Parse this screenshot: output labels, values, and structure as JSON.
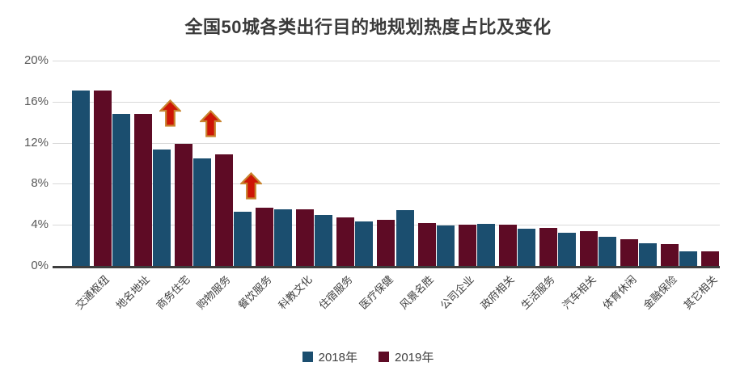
{
  "title": "全国50城各类出行目的地规划热度占比及变化",
  "legend": {
    "items": [
      {
        "label": "2018年",
        "color": "#1B4E6F"
      },
      {
        "label": "2019年",
        "color": "#5E0B25"
      }
    ]
  },
  "chart_data": {
    "type": "bar",
    "title": "全国50城各类出行目的地规划热度占比及变化",
    "categories": [
      "交通枢纽",
      "地名地址",
      "商务住宅",
      "购物服务",
      "餐饮服务",
      "科教文化",
      "住宿服务",
      "医疗保健",
      "风景名胜",
      "公司企业",
      "政府相关",
      "生活服务",
      "汽车相关",
      "体育休闲",
      "金融保险",
      "其它相关"
    ],
    "series": [
      {
        "name": "2018年",
        "color": "#1B4E6F",
        "values": [
          17.1,
          14.8,
          11.3,
          10.5,
          5.3,
          5.5,
          5.0,
          4.3,
          5.4,
          3.9,
          4.1,
          3.6,
          3.2,
          2.8,
          2.2,
          1.4
        ]
      },
      {
        "name": "2019年",
        "color": "#5E0B25",
        "values": [
          17.1,
          14.8,
          11.9,
          10.9,
          5.7,
          5.5,
          4.7,
          4.5,
          4.2,
          4.0,
          4.0,
          3.7,
          3.4,
          2.6,
          2.1,
          1.4
        ]
      }
    ],
    "ylabel": "",
    "xlabel": "",
    "ylim": [
      0,
      20
    ],
    "yticks": [
      0,
      4,
      8,
      12,
      16,
      20
    ],
    "ytick_labels": [
      "0%",
      "4%",
      "8%",
      "12%",
      "16%",
      "20%"
    ],
    "grid": true,
    "legend_position": "bottom",
    "annotations": {
      "icon": "up-arrow-icon",
      "up_arrow_category_indices": [
        2,
        3,
        4
      ],
      "arrow_fill": "#CE1506",
      "arrow_stroke": "#C8832E"
    }
  }
}
